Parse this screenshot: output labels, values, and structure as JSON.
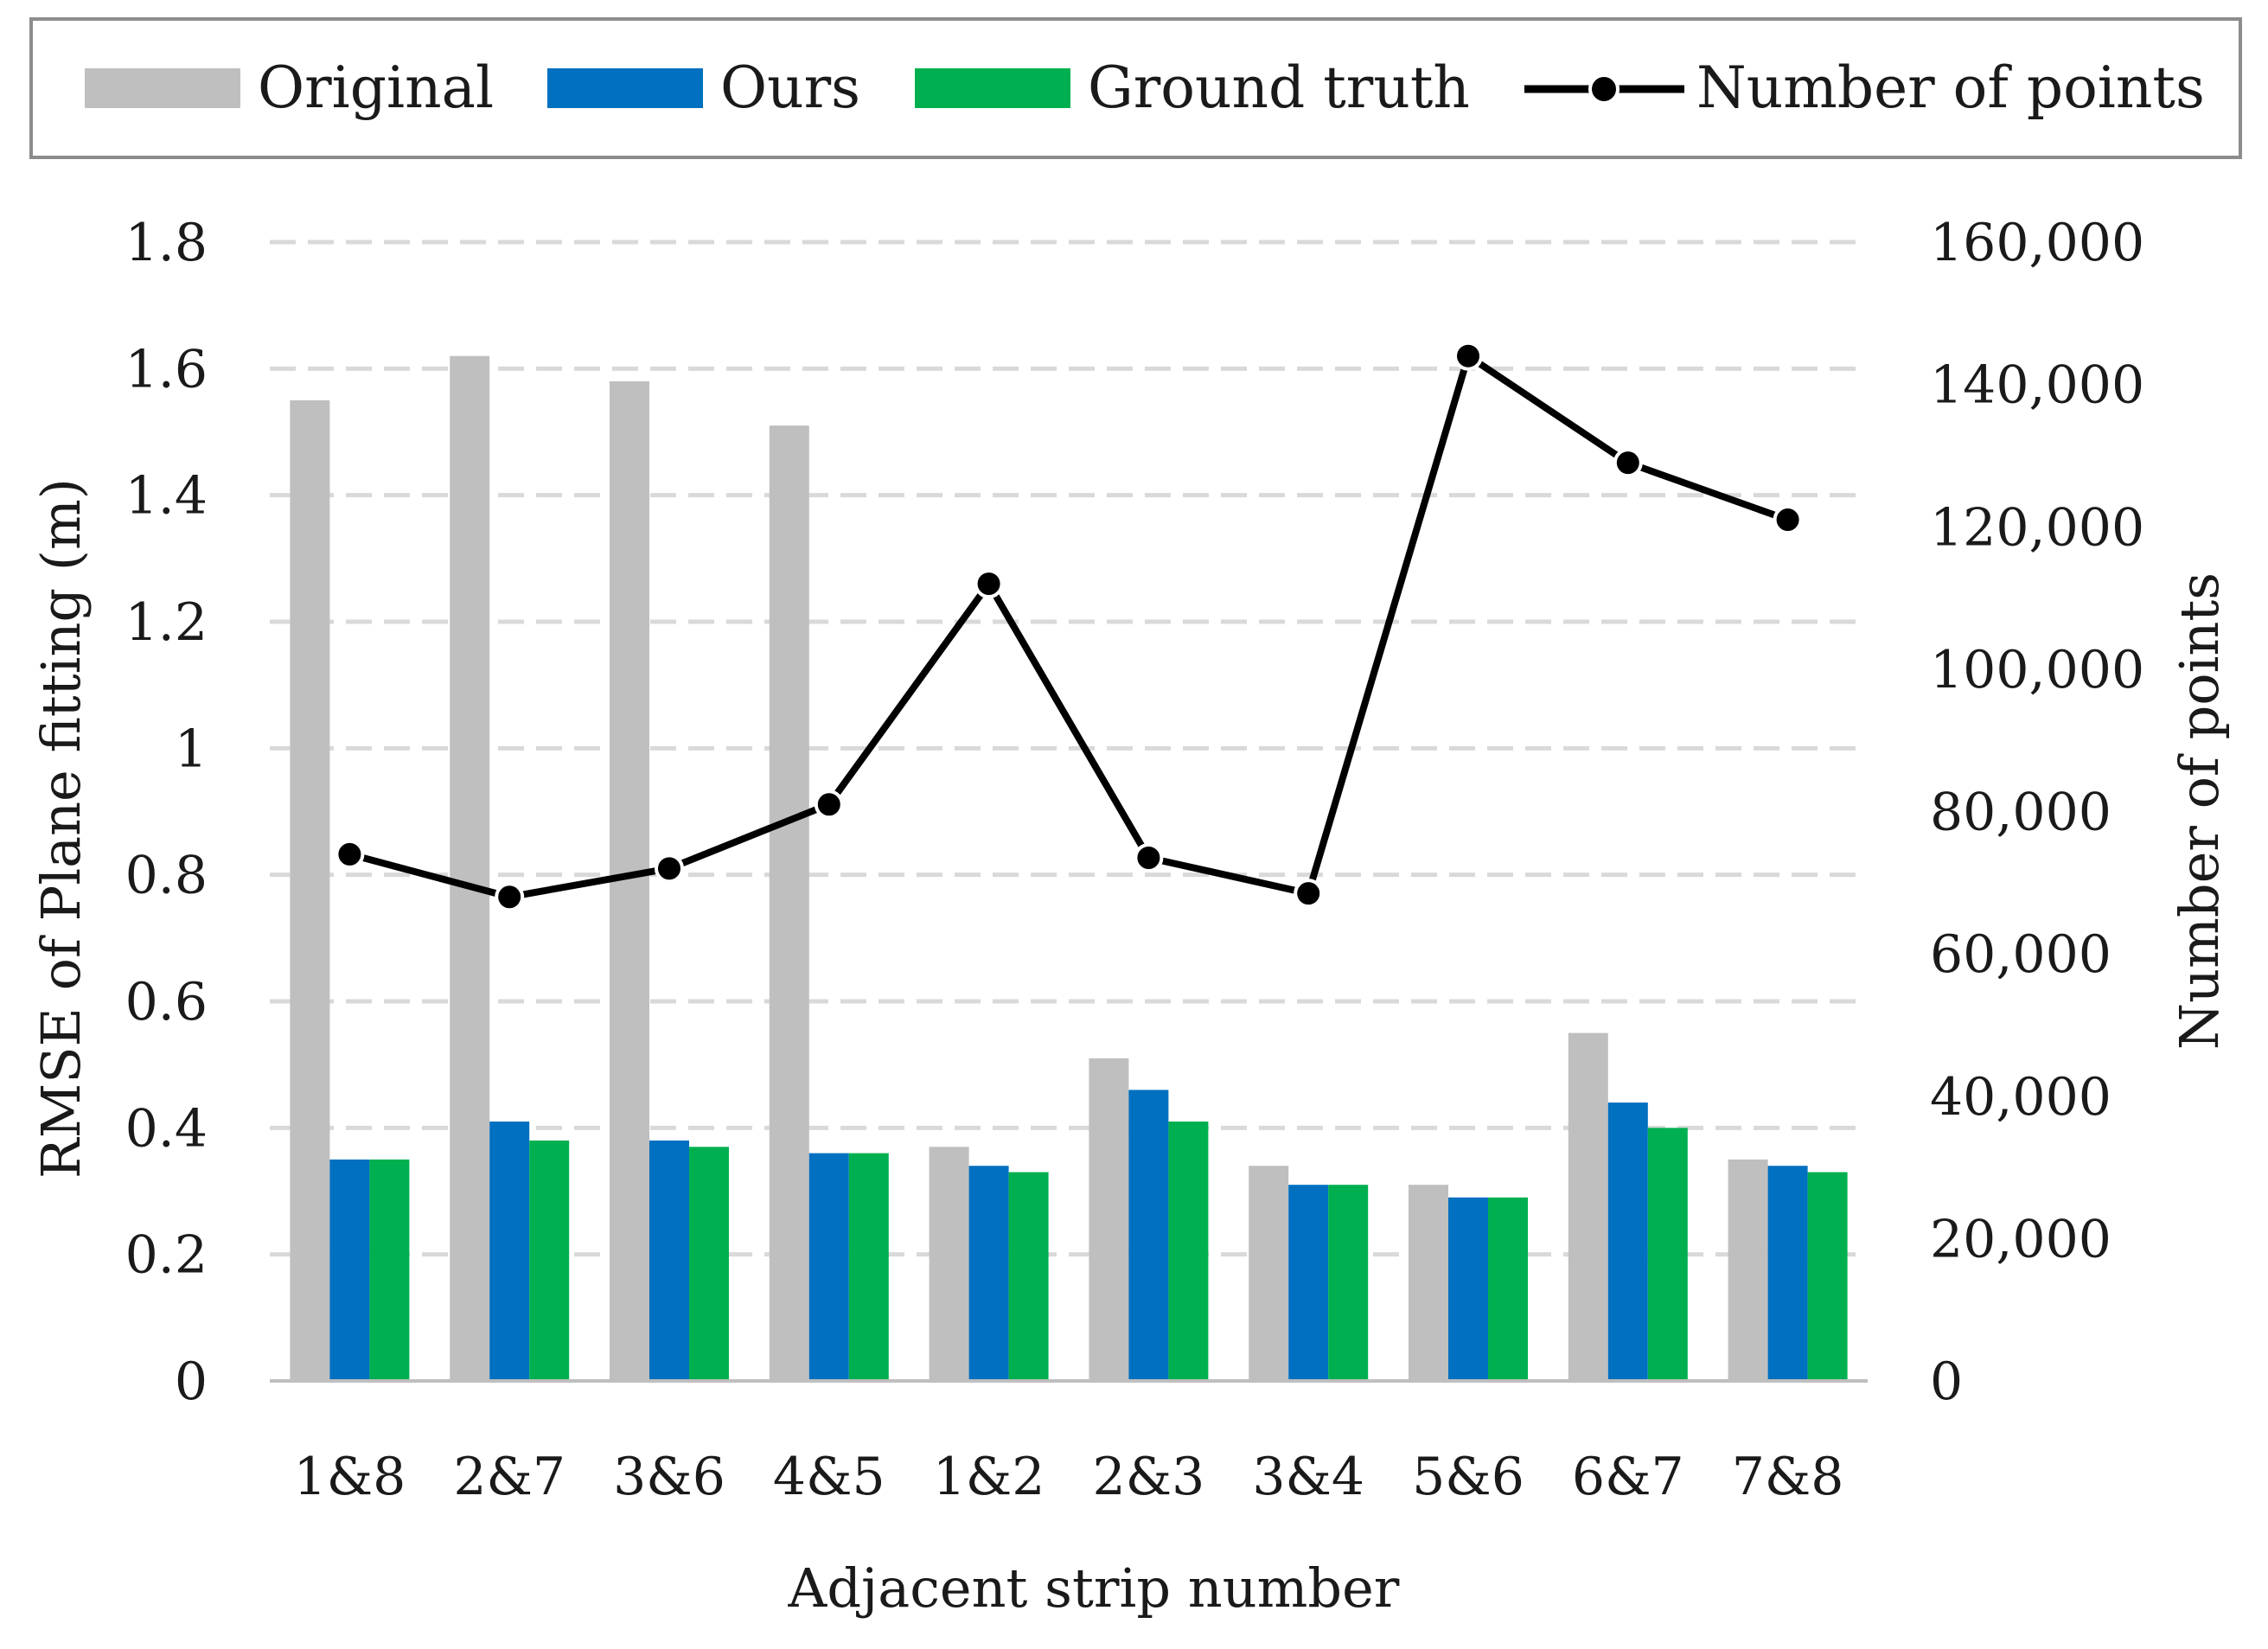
{
  "chart_data": {
    "type": "bar",
    "title": "",
    "xlabel": "Adjacent strip number",
    "ylabel": "RMSE of Plane fitting (m)",
    "y2label": "Number of points",
    "categories": [
      "1&8",
      "2&7",
      "3&6",
      "4&5",
      "1&2",
      "2&3",
      "3&4",
      "5&6",
      "6&7",
      "7&8"
    ],
    "ylim": [
      0,
      1.8
    ],
    "y2lim": [
      0,
      160000
    ],
    "yticks": [
      "0",
      "0.2",
      "0.4",
      "0.6",
      "0.8",
      "1",
      "1.2",
      "1.4",
      "1.6",
      "1.8"
    ],
    "y2ticks": [
      "0",
      "20,000",
      "40,000",
      "60,000",
      "80,000",
      "100,000",
      "120,000",
      "140,000",
      "160,000"
    ],
    "grid": true,
    "legend_position": "top",
    "series": [
      {
        "name": "Original",
        "type": "bar",
        "axis": "left",
        "color": "#bfbfbf",
        "values": [
          1.55,
          1.62,
          1.58,
          1.51,
          0.37,
          0.51,
          0.34,
          0.31,
          0.55,
          0.35
        ]
      },
      {
        "name": "Ours",
        "type": "bar",
        "axis": "left",
        "color": "#0070c0",
        "values": [
          0.35,
          0.41,
          0.38,
          0.36,
          0.34,
          0.46,
          0.31,
          0.29,
          0.44,
          0.34
        ]
      },
      {
        "name": "Ground truth",
        "type": "bar",
        "axis": "left",
        "color": "#00b050",
        "values": [
          0.35,
          0.38,
          0.37,
          0.36,
          0.33,
          0.41,
          0.31,
          0.29,
          0.4,
          0.33
        ]
      },
      {
        "name": "Number of points",
        "type": "line",
        "axis": "right",
        "color": "#000000",
        "values": [
          74000,
          68000,
          72000,
          81000,
          112000,
          73500,
          68500,
          144000,
          129000,
          121000
        ]
      }
    ]
  }
}
